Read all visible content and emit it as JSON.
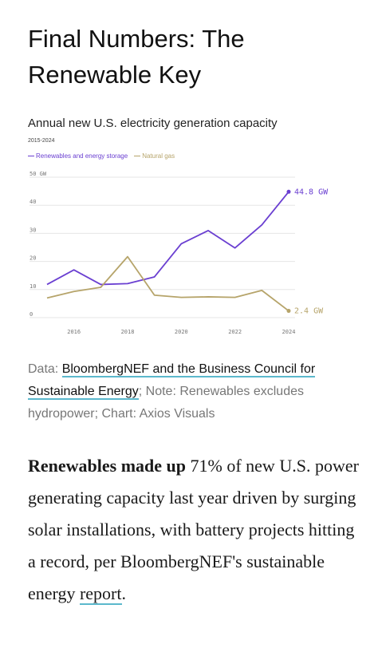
{
  "headline": {
    "line1": "Final Numbers: The",
    "line2": "Renewable Key"
  },
  "chart_title": "Annual new U.S. electricity generation capacity",
  "chart_subtitle": "2015-2024",
  "colors": {
    "renewables": "#6a3fd1",
    "gas": "#b6a46a",
    "link_underline": "#5bb8cc",
    "grid": "#e6e6e6"
  },
  "chart_data": {
    "type": "line",
    "title": "Annual new U.S. electricity generation capacity",
    "subtitle": "2015-2024",
    "x": [
      2015,
      2016,
      2017,
      2018,
      2019,
      2020,
      2021,
      2022,
      2023,
      2024
    ],
    "xticks": [
      "2016",
      "2018",
      "2020",
      "2022",
      "2024"
    ],
    "xlim": [
      2015,
      2024
    ],
    "ylim": [
      0,
      50
    ],
    "yticks": [
      "0",
      "10",
      "20",
      "30",
      "40",
      "50 GW"
    ],
    "grid": true,
    "legend_position": "top-left",
    "series": [
      {
        "name": "Renewables and energy storage",
        "values": [
          11.8,
          17.0,
          11.8,
          12.1,
          14.5,
          26.3,
          31.0,
          24.8,
          33.0,
          44.8
        ],
        "end_label": "44.8 GW"
      },
      {
        "name": "Natural gas",
        "values": [
          7.0,
          9.3,
          10.8,
          21.7,
          8.0,
          7.2,
          7.4,
          7.2,
          9.7,
          2.4
        ],
        "end_label": "2.4 GW"
      }
    ]
  },
  "credit": {
    "prefix": "Data: ",
    "source_link": "BloombergNEF and the Business Council for Sustainable Energy",
    "suffix": "; Note: Renewables excludes hydropower; Chart: Axios Visuals"
  },
  "body": {
    "bold": "Renewables made up",
    "text1": " 71% of new U.S. power generating capacity last year driven by surging solar installations, with battery projects hitting a record, per BloombergNEF's sustainable energy ",
    "link": "report",
    "text2": "."
  }
}
